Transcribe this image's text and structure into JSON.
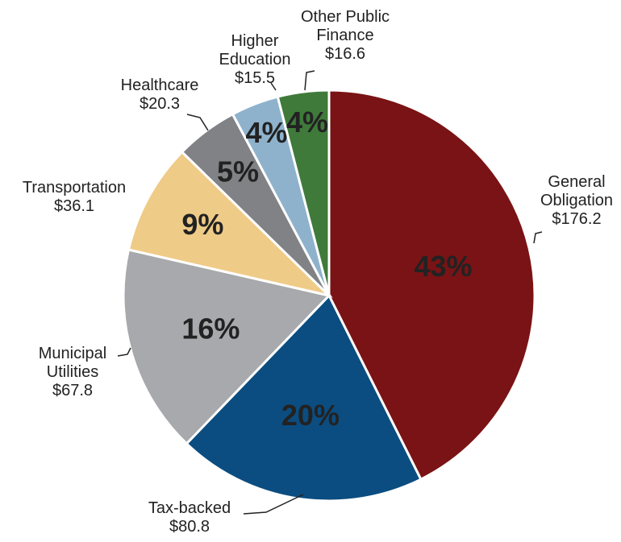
{
  "chart_data": {
    "type": "pie",
    "categories": [
      "General Obligation",
      "Tax-backed",
      "Municipal Utilities",
      "Transportation",
      "Healthcare",
      "Higher Education",
      "Other Public Finance"
    ],
    "values": [
      176.2,
      80.8,
      67.8,
      36.1,
      20.3,
      15.5,
      16.6
    ],
    "value_labels": [
      "$176.2",
      "$80.8",
      "$67.8",
      "$36.1",
      "$20.3",
      "$15.5",
      "$16.6"
    ],
    "percent_labels": [
      "43%",
      "20%",
      "16%",
      "9%",
      "5%",
      "4%",
      "4%"
    ],
    "colors": [
      "#7a1315",
      "#0b4d80",
      "#a7a9ac",
      "#efcb88",
      "#808285",
      "#8fb2cc",
      "#3f7a3a"
    ]
  }
}
